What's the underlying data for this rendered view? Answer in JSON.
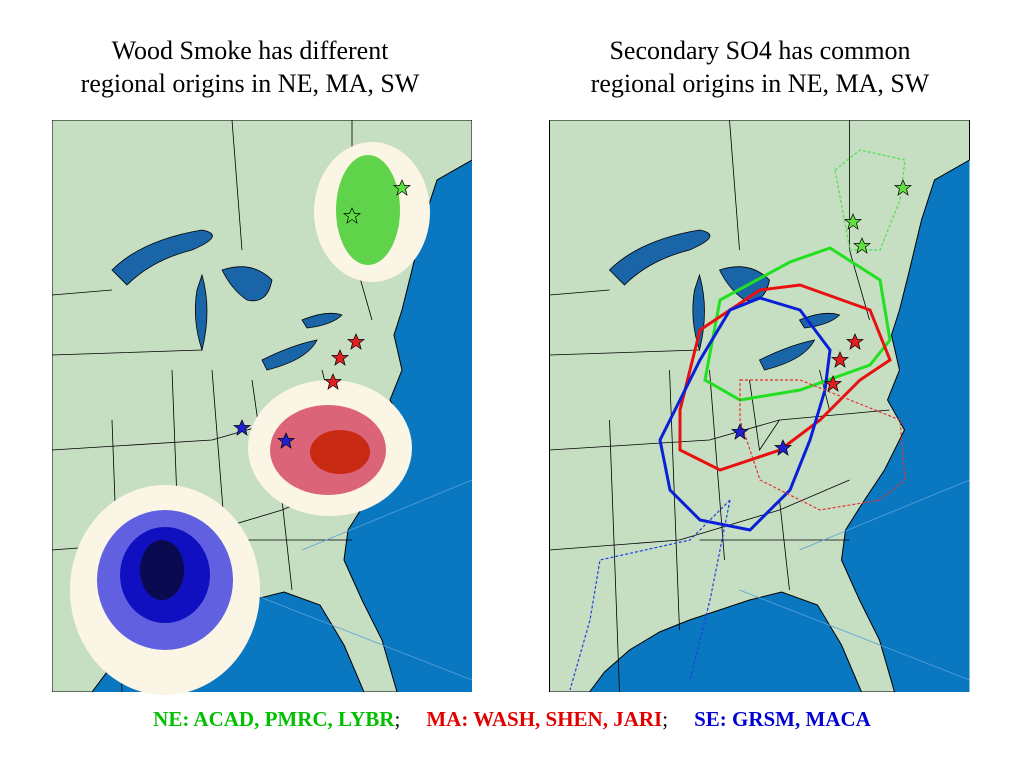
{
  "panels": [
    {
      "title_lines": [
        "Wood Smoke has different",
        "regional origins in NE, MA, SW"
      ]
    },
    {
      "title_lines": [
        "Secondary SO4 has common",
        "regional origins in NE, MA, SW"
      ]
    }
  ],
  "legend": {
    "items": [
      {
        "text": "NE: ACAD, PMRC, LYBR",
        "color": "#00c000"
      },
      {
        "text": "MA: WASH, SHEN, JARI",
        "color": "#e00000"
      },
      {
        "text": "SE: GRSM, MACA",
        "color": "#0000d0"
      }
    ],
    "separator": ";"
  }
}
